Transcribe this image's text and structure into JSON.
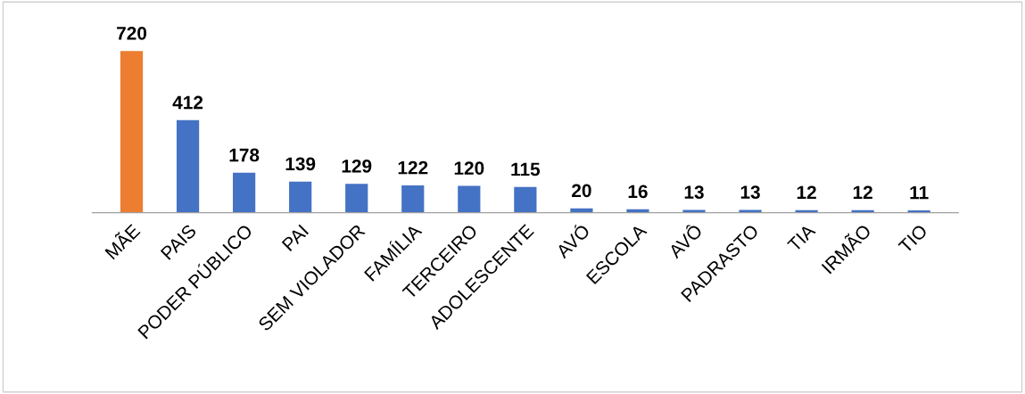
{
  "chart_data": {
    "type": "bar",
    "categories": [
      "MÃE",
      "PAIS",
      "PODER PÚBLICO",
      "PAI",
      "SEM VIOLADOR",
      "FAMÍLIA",
      "TERCEIRO",
      "ADOLESCENTE",
      "AVÓ",
      "ESCOLA",
      "AVÔ",
      "PADRASTO",
      "TIA",
      "IRMÃO",
      "TIO"
    ],
    "values": [
      720,
      412,
      178,
      139,
      129,
      122,
      120,
      115,
      20,
      16,
      13,
      13,
      12,
      12,
      11
    ],
    "colors": [
      "#ed7d31",
      "#4472c4",
      "#4472c4",
      "#4472c4",
      "#4472c4",
      "#4472c4",
      "#4472c4",
      "#4472c4",
      "#4472c4",
      "#4472c4",
      "#4472c4",
      "#4472c4",
      "#4472c4",
      "#4472c4",
      "#4472c4"
    ],
    "data_labels": true
  }
}
